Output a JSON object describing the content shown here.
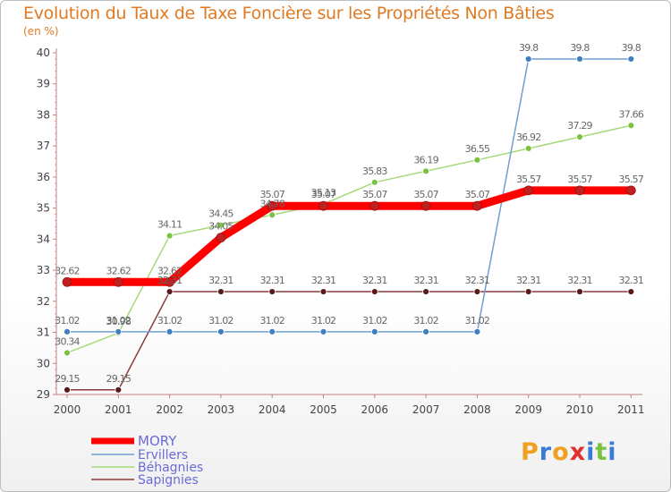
{
  "title": "Evolution du Taux de Taxe Foncière sur les Propriétés Non Bâties",
  "unit": "(en %)",
  "logo": {
    "letters": [
      "P",
      "r",
      "o",
      "x",
      "i",
      "t",
      "i"
    ],
    "colors": [
      "#f0a020",
      "#3a7bd5",
      "#f0a020",
      "#e03030",
      "#3a7bd5",
      "#7cc242",
      "#3a7bd5"
    ]
  },
  "chart_data": {
    "type": "line",
    "title": "Evolution du Taux de Taxe Foncière sur les Propriétés Non Bâties",
    "ylabel": "(en %)",
    "xlabel": "",
    "x": [
      "2000",
      "2001",
      "2002",
      "2003",
      "2004",
      "2005",
      "2006",
      "2007",
      "2008",
      "2009",
      "2010",
      "2011"
    ],
    "ylim": [
      29,
      40
    ],
    "yticks": [
      "29",
      "30",
      "31",
      "32",
      "33",
      "34",
      "35",
      "36",
      "37",
      "38",
      "39",
      "40"
    ],
    "series": [
      {
        "name": "MORY",
        "color": "#ff0000",
        "marker": "#c02020",
        "bold": true,
        "values": [
          32.62,
          32.62,
          32.62,
          34.05,
          35.07,
          35.07,
          35.07,
          35.07,
          35.07,
          35.57,
          35.57,
          35.57
        ],
        "labels": [
          "32.62",
          "32.62",
          "32.62",
          "34.05",
          "35.07",
          "35.07",
          "35.07",
          "35.07",
          "35.07",
          "35.57",
          "35.57",
          "35.57"
        ]
      },
      {
        "name": "Ervillers",
        "color": "#6f9fd0",
        "marker": "#3f7fc0",
        "bold": false,
        "values": [
          31.02,
          31.02,
          31.02,
          31.02,
          31.02,
          31.02,
          31.02,
          31.02,
          31.02,
          39.8,
          39.8,
          39.8
        ],
        "labels": [
          "31.02",
          "31.02",
          "31.02",
          "31.02",
          "31.02",
          "31.02",
          "31.02",
          "31.02",
          "31.02",
          "39.8",
          "39.8",
          "39.8"
        ]
      },
      {
        "name": "Béhagnies",
        "color": "#a6d97a",
        "marker": "#7cc242",
        "bold": false,
        "values": [
          30.34,
          30.98,
          34.11,
          34.45,
          34.78,
          35.13,
          35.83,
          36.19,
          36.55,
          36.92,
          37.29,
          37.66
        ],
        "labels": [
          "30.34",
          "30.98",
          "34.11",
          "34.45",
          "34.78",
          "35.13",
          "35.83",
          "36.19",
          "36.55",
          "36.92",
          "37.29",
          "37.66"
        ]
      },
      {
        "name": "Sapignies",
        "color": "#8b3a3a",
        "marker": "#5a1a1a",
        "bold": false,
        "values": [
          29.15,
          29.15,
          32.31,
          32.31,
          32.31,
          32.31,
          32.31,
          32.31,
          32.31,
          32.31,
          32.31,
          32.31
        ],
        "labels": [
          "29.15",
          "29.15",
          "32.31",
          "32.31",
          "32.31",
          "32.31",
          "32.31",
          "32.31",
          "32.31",
          "32.31",
          "32.31",
          "32.31"
        ]
      }
    ],
    "legend": [
      "MORY",
      "Ervillers",
      "Béhagnies",
      "Sapignies"
    ],
    "legend_position": "bottom-left",
    "grid": false
  }
}
